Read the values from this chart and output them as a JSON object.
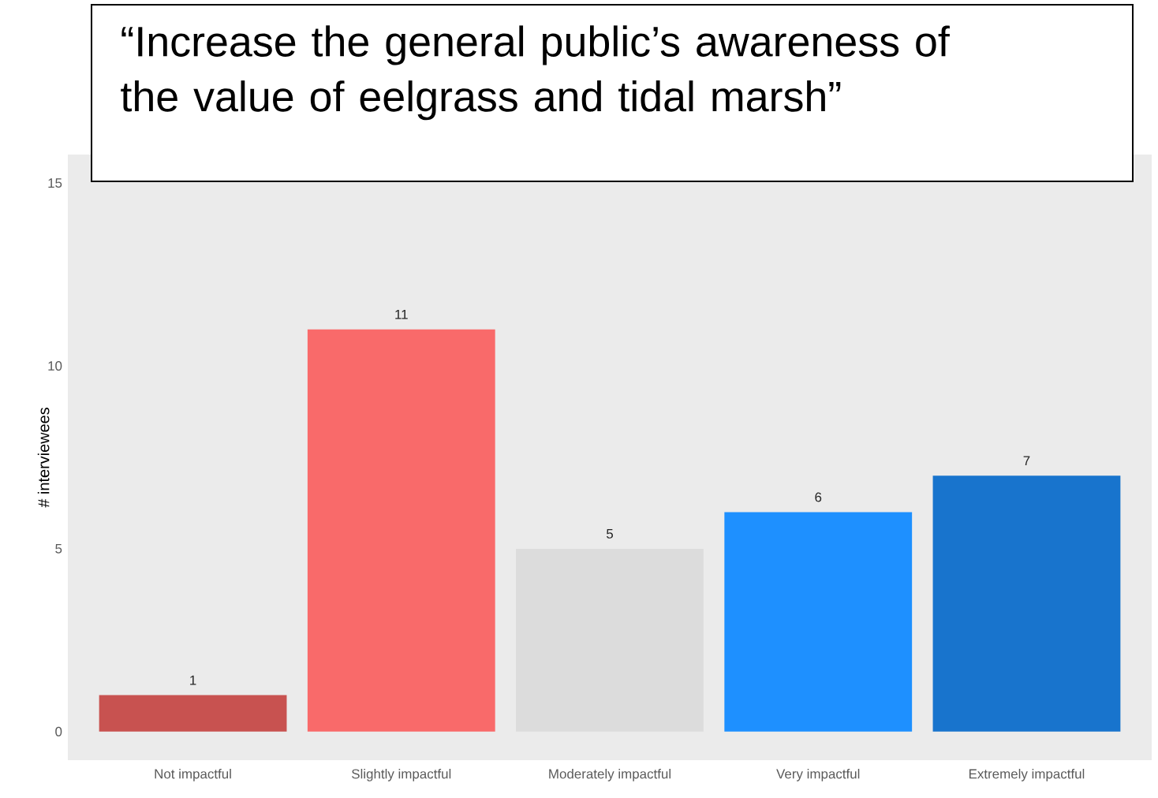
{
  "chart_data": {
    "type": "bar",
    "title": "“Increase the general public’s awareness of the value of eelgrass and tidal marsh”",
    "ylabel": "# interviewees",
    "categories": [
      "Not impactful",
      "Slightly impactful",
      "Moderately impactful",
      "Very impactful",
      "Extremely impactful"
    ],
    "values": [
      1,
      11,
      5,
      6,
      7
    ],
    "colors": [
      "#c85250",
      "#f96a6a",
      "#dcdcdc",
      "#1e90ff",
      "#1874cd"
    ],
    "ylim": [
      -0.78,
      15.78
    ],
    "yticks": [
      0,
      5,
      10,
      15
    ],
    "grid": false,
    "data_labels": true
  }
}
